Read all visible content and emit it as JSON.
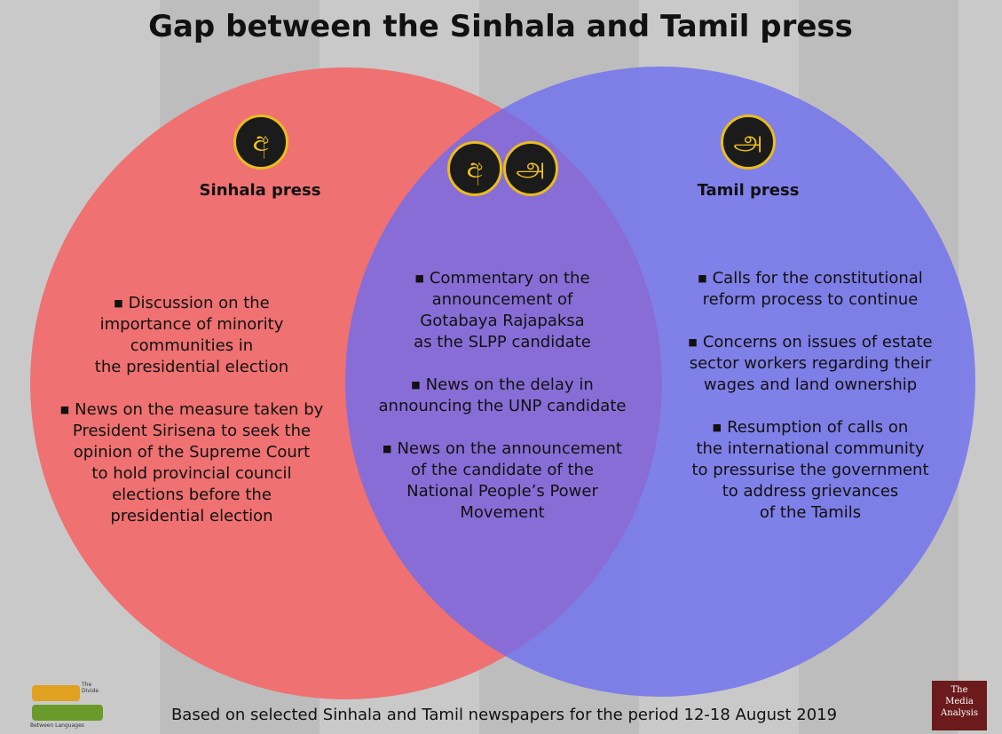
{
  "title": "Gap between the Sinhala and Tamil press",
  "sets": [
    {
      "icons": [
        "අ"
      ],
      "label": "Sinhala press",
      "items": [
        [
          "Discussion on the",
          "importance of minority",
          "communities in",
          "the presidential election"
        ],
        [
          "News on the measure taken by",
          "President Sirisena to seek the",
          "opinion of the Supreme Court",
          "to hold provincial council",
          "elections before the",
          "presidential election"
        ]
      ]
    },
    {
      "icons": [
        "අ",
        "அ"
      ],
      "items": [
        [
          "Commentary on the",
          "announcement of",
          "Gotabaya Rajapaksa",
          "as the SLPP candidate"
        ],
        [
          "News on the delay in",
          "announcing the UNP candidate"
        ],
        [
          "News on the announcement",
          "of the candidate of the",
          "National People’s Power",
          "Movement"
        ]
      ]
    },
    {
      "icons": [
        "அ"
      ],
      "label": "Tamil press",
      "items": [
        [
          "Calls for the constitutional",
          "reform process to continue"
        ],
        [
          "Concerns on issues of estate",
          "sector workers regarding their",
          "wages and land ownership"
        ],
        [
          "Resumption of calls on",
          "the international community",
          "to pressurise the government",
          "to address grievances",
          "of the Tamils"
        ]
      ]
    }
  ],
  "footer": "Based on selected Sinhala and Tamil newspapers for the period 12-18 August 2019",
  "logo_left": {
    "top": "The Divide",
    "bottom": "Between Languages"
  },
  "logo_right": [
    "The",
    "Media",
    "Analysis"
  ]
}
